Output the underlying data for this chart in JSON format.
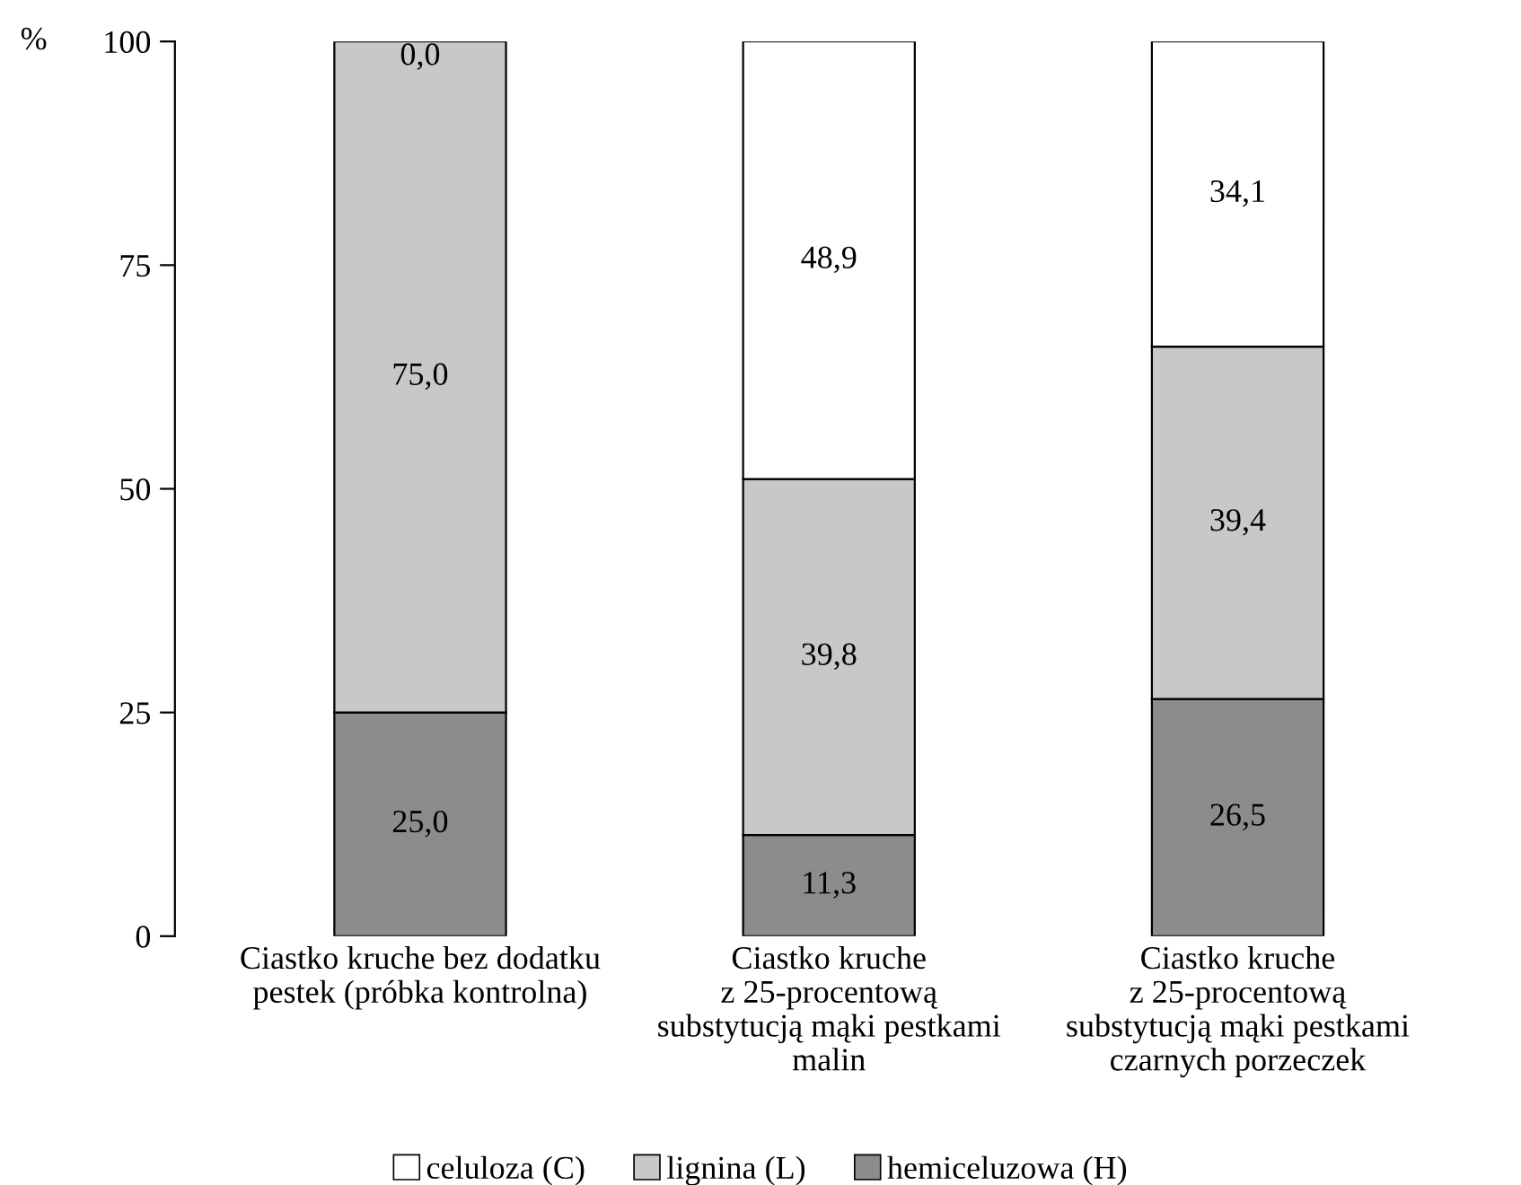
{
  "chart_data": {
    "type": "bar",
    "stacked": true,
    "ylabel": "%",
    "categories": [
      "Ciastko kruche bez dodatku\npestek (próbka kontrolna)",
      "Ciastko kruche\nz 25-procentową\nsubstytucją mąki pestkami\nmalin",
      "Ciastko kruche\nz 25-procentową\nsubstytucją mąki pestkami\nczarnych porzeczek"
    ],
    "series": [
      {
        "name": "hemiceluzowa (H)",
        "color": "#8c8c8c",
        "values": [
          25.0,
          11.3,
          26.5
        ],
        "value_labels": [
          "25,0",
          "11,3",
          "26,5"
        ]
      },
      {
        "name": "lignina (L)",
        "color": "#c8c8c8",
        "values": [
          75.0,
          39.8,
          39.4
        ],
        "value_labels": [
          "75,0",
          "39,8",
          "39,4"
        ]
      },
      {
        "name": "celuloza (C)",
        "color": "#ffffff",
        "values": [
          0.0,
          48.9,
          34.1
        ],
        "value_labels": [
          "0,0",
          "48,9",
          "34,1"
        ]
      }
    ],
    "ylim": [
      0,
      100
    ],
    "yticks": [
      0,
      25,
      50,
      75,
      100
    ],
    "grid": false,
    "legend": "bottom"
  }
}
